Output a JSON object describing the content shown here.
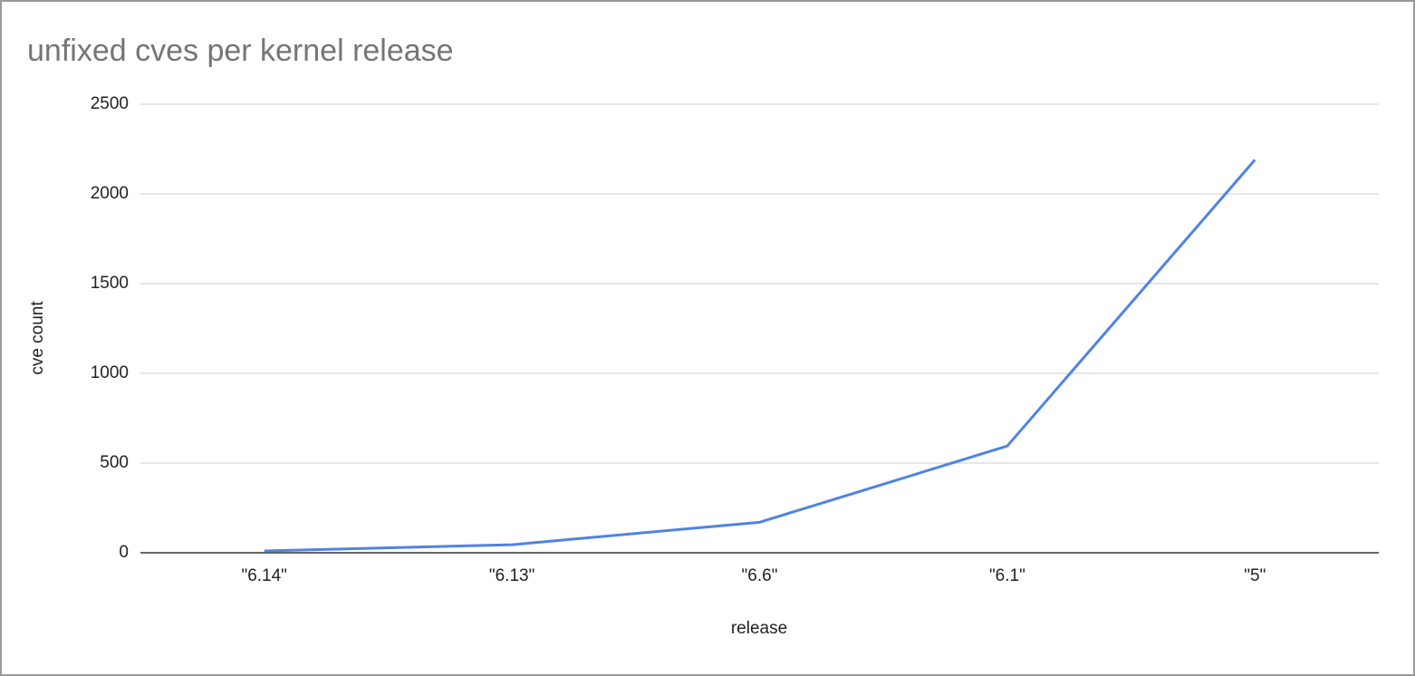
{
  "chart_data": {
    "type": "line",
    "title": "unfixed cves per kernel release",
    "x_label": "release",
    "y_label": "cve count",
    "categories": [
      "\"6.14\"",
      "\"6.13\"",
      "\"6.6\"",
      "\"6.1\"",
      "\"5\""
    ],
    "series": [
      {
        "name": "cve count",
        "color": "#4f83e5",
        "values": [
          10,
          45,
          170,
          595,
          2190
        ]
      }
    ],
    "ylim": [
      0,
      2500
    ],
    "yticks": [
      0,
      500,
      1000,
      1500,
      2000,
      2500
    ],
    "grid": true
  }
}
